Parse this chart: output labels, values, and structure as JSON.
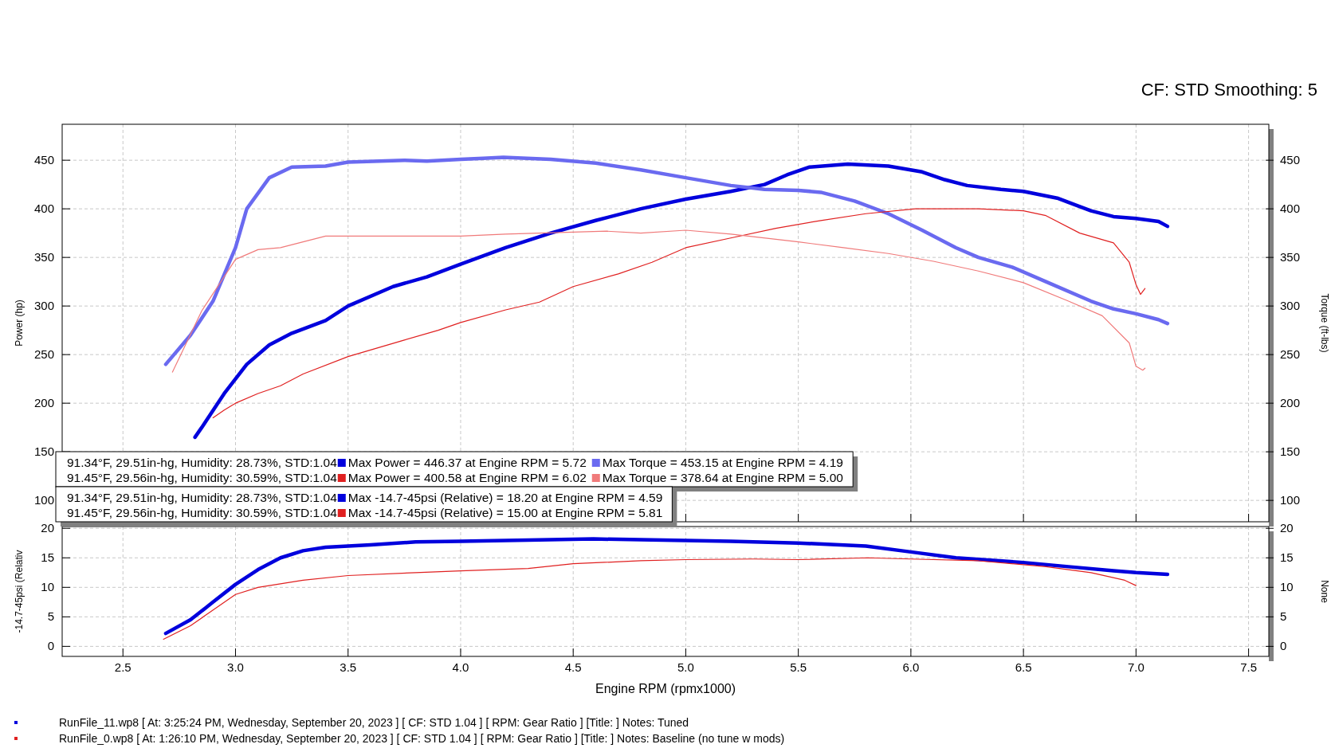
{
  "chart_data": [
    {
      "type": "line",
      "title": "CF: STD Smoothing: 5",
      "ylabel": "Power (hp)",
      "y2label": "Torque (ft-lbs)",
      "xlim": [
        2.23,
        7.59
      ],
      "xticks": [
        2.5,
        3,
        3.5,
        4,
        4.5,
        5,
        5.5,
        6,
        6.5,
        7,
        7.5
      ],
      "ylim": [
        78,
        487
      ],
      "yticks": [
        100,
        150,
        200,
        250,
        300,
        350,
        400,
        450
      ],
      "y2lim": [
        78,
        487
      ],
      "y2ticks": [
        100,
        150,
        200,
        250,
        300,
        350,
        400,
        450
      ],
      "tick_labels": "y",
      "grid": true,
      "legend": "bottom left",
      "marker": "none",
      "line_style": "solid",
      "annotations": [
        "91.34°F, 29.51in-hg, Humidity: 28.73%, STD:1.04",
        "91.45°F, 29.56in-hg, Humidity: 30.59%, STD:1.04"
      ],
      "series": [
        {
          "name": "Max Power = 446.37 at Engine RPM = 5.72",
          "color": "#0000dd",
          "x": [
            2.82,
            2.85,
            2.95,
            3.05,
            3.15,
            3.25,
            3.4,
            3.5,
            3.7,
            3.85,
            4.0,
            4.2,
            4.4,
            4.6,
            4.8,
            5.0,
            5.2,
            5.35,
            5.45,
            5.55,
            5.72,
            5.9,
            6.05,
            6.15,
            6.25,
            6.4,
            6.5,
            6.65,
            6.8,
            6.9,
            7.0,
            7.1,
            7.14
          ],
          "values": [
            165,
            175,
            210,
            240,
            260,
            272,
            285,
            300,
            320,
            330,
            343,
            360,
            375,
            388,
            400,
            410,
            418,
            425,
            435,
            443,
            446,
            444,
            438,
            430,
            424,
            420,
            418,
            411,
            398,
            392,
            390,
            387,
            382
          ]
        },
        {
          "name": "Max Torque = 453.15 at Engine RPM = 4.19",
          "color": "#6a6af0",
          "x": [
            2.69,
            2.8,
            2.9,
            3.0,
            3.05,
            3.15,
            3.25,
            3.4,
            3.5,
            3.75,
            3.85,
            4.0,
            4.1,
            4.19,
            4.4,
            4.6,
            4.8,
            5.0,
            5.2,
            5.35,
            5.5,
            5.6,
            5.75,
            5.9,
            6.05,
            6.2,
            6.3,
            6.45,
            6.6,
            6.8,
            6.9,
            7.0,
            7.1,
            7.14
          ],
          "values": [
            240,
            270,
            305,
            360,
            400,
            432,
            443,
            444,
            448,
            450,
            449,
            451,
            452,
            453,
            451,
            447,
            440,
            432,
            424,
            420,
            419,
            417,
            408,
            395,
            378,
            360,
            350,
            340,
            325,
            305,
            297,
            292,
            286,
            282
          ]
        },
        {
          "name": "Max Power = 400.58 at Engine RPM = 6.02",
          "color": "#e02020",
          "x": [
            2.9,
            2.95,
            3.0,
            3.1,
            3.2,
            3.3,
            3.5,
            3.75,
            3.9,
            4.0,
            4.2,
            4.35,
            4.5,
            4.7,
            4.85,
            5.0,
            5.2,
            5.4,
            5.6,
            5.8,
            6.02,
            6.1,
            6.3,
            6.5,
            6.6,
            6.75,
            6.9,
            6.97,
            7.0,
            7.02,
            7.04
          ],
          "values": [
            185,
            193,
            200,
            210,
            218,
            230,
            248,
            265,
            275,
            283,
            296,
            304,
            320,
            333,
            345,
            360,
            370,
            380,
            388,
            395,
            400,
            400,
            400,
            398,
            393,
            375,
            365,
            345,
            322,
            312,
            318
          ]
        },
        {
          "name": "Max Torque = 378.64 at Engine RPM = 5.00",
          "color": "#f07a7a",
          "x": [
            2.72,
            2.85,
            3.0,
            3.1,
            3.2,
            3.4,
            3.6,
            3.8,
            4.0,
            4.2,
            4.5,
            4.65,
            4.8,
            5.0,
            5.2,
            5.5,
            5.7,
            5.9,
            6.1,
            6.3,
            6.5,
            6.7,
            6.85,
            6.97,
            7.0,
            7.03,
            7.04
          ],
          "values": [
            232,
            295,
            348,
            358,
            360,
            372,
            372,
            372,
            372,
            374,
            376,
            377,
            375,
            378,
            374,
            366,
            360,
            354,
            346,
            336,
            324,
            305,
            290,
            262,
            238,
            234,
            236
          ]
        }
      ]
    },
    {
      "type": "line",
      "xlabel": "Engine RPM (rpmx1000)",
      "ylabel": "-14.7-45psi (Relativ",
      "y2label": "None",
      "xlim": [
        2.23,
        7.59
      ],
      "xticks": [
        2.5,
        {
          "value": 3,
          "label": "3.0"
        },
        3.5,
        {
          "value": 4,
          "label": "4.0"
        },
        4.5,
        {
          "value": 5,
          "label": "5.0"
        },
        5.5,
        {
          "value": 6,
          "label": "6.0"
        },
        6.5,
        {
          "value": 7,
          "label": "7.0"
        },
        7.5
      ],
      "ylim": [
        -1.7,
        20.3
      ],
      "yticks": [
        0,
        5,
        10,
        15,
        20
      ],
      "y2lim": [
        -1.7,
        20.3
      ],
      "y2ticks": [
        0,
        5,
        10,
        15,
        20
      ],
      "grid": true,
      "legend": "top left",
      "marker": "none",
      "line_style": "solid",
      "annotations": [
        "91.34°F, 29.51in-hg, Humidity: 28.73%, STD:1.04",
        "91.45°F, 29.56in-hg, Humidity: 30.59%, STD:1.04",
        "RunFile_11.wp8 [ At: 3:25:24 PM, Wednesday, September 20, 2023 ] [ CF: STD 1.04 ] [ RPM: Gear Ratio ] [Title: ]  Notes: Tuned",
        "RunFile_0.wp8 [ At: 1:26:10 PM, Wednesday, September 20, 2023 ] [ CF: STD 1.04 ] [ RPM: Gear Ratio ] [Title: ]  Notes: Baseline (no tune w mods)"
      ],
      "series": [
        {
          "name": "Max -14.7-45psi (Relative) = 18.20 at Engine RPM = 4.59",
          "color": "#0000dd",
          "x": [
            2.69,
            2.8,
            2.9,
            3.0,
            3.1,
            3.2,
            3.3,
            3.4,
            3.6,
            3.8,
            4.0,
            4.3,
            4.59,
            4.9,
            5.2,
            5.5,
            5.8,
            6.0,
            6.2,
            6.5,
            6.7,
            6.9,
            7.0,
            7.14
          ],
          "values": [
            2.2,
            4.5,
            7.5,
            10.5,
            13,
            15,
            16.2,
            16.8,
            17.2,
            17.7,
            17.8,
            18,
            18.2,
            18,
            17.8,
            17.5,
            17,
            16,
            15,
            14.2,
            13.5,
            12.8,
            12.5,
            12.2
          ]
        },
        {
          "name": "Max -14.7-45psi (Relative) = 15.00 at Engine RPM = 5.81",
          "color": "#e02020",
          "x": [
            2.68,
            2.8,
            3.0,
            3.1,
            3.3,
            3.5,
            3.8,
            4.0,
            4.3,
            4.5,
            4.8,
            5.0,
            5.3,
            5.5,
            5.81,
            6.0,
            6.3,
            6.6,
            6.8,
            6.95,
            7.0
          ],
          "values": [
            1.2,
            3.5,
            8.8,
            10,
            11.2,
            12,
            12.5,
            12.8,
            13.2,
            14,
            14.5,
            14.7,
            14.8,
            14.7,
            15,
            14.8,
            14.5,
            13.5,
            12.5,
            11.2,
            10.3
          ]
        }
      ]
    }
  ]
}
